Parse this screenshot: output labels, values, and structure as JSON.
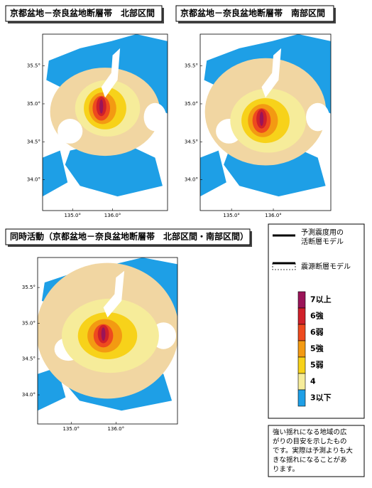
{
  "panels": [
    {
      "title": "京都盆地－奈良盆地断層帯　北部区間",
      "lat_labels": [
        "35.5°",
        "35.0°",
        "34.5°",
        "34.0°"
      ],
      "lon_labels": [
        "135.0°",
        "136.0°"
      ]
    },
    {
      "title": "京都盆地－奈良盆地断層帯　南部区間",
      "lat_labels": [
        "35.5°",
        "35.0°",
        "34.5°",
        "34.0°"
      ],
      "lon_labels": [
        "135.0°",
        "136.0°"
      ]
    },
    {
      "title": "同時活動（京都盆地－奈良盆地断層帯　北部区間・南部区間）",
      "lat_labels": [
        "35.5°",
        "35.0°",
        "34.5°",
        "34.0°"
      ],
      "lon_labels": [
        "135.0°",
        "136.0°"
      ]
    }
  ],
  "legend": {
    "fault_lines": [
      {
        "label_lines": [
          "予測震度用の",
          "活断層モデル"
        ]
      },
      {
        "label_lines": [
          "震源断層モデル"
        ]
      }
    ],
    "scale": [
      {
        "label": "7以上",
        "color": "#9b1458"
      },
      {
        "label": "6強",
        "color": "#d0202a"
      },
      {
        "label": "6弱",
        "color": "#ee4a1e"
      },
      {
        "label": "5強",
        "color": "#f39a12"
      },
      {
        "label": "5弱",
        "color": "#f7d21a"
      },
      {
        "label": "4",
        "color": "#f6ec9a"
      },
      {
        "label": "3以下",
        "color": "#1e9fe6"
      }
    ]
  },
  "note": {
    "lines": [
      "強い揺れになる地域の広",
      "がりの目安を示したもの",
      "です。実際は予測よりも大",
      "きな揺れになることがあ",
      "ります。"
    ]
  }
}
